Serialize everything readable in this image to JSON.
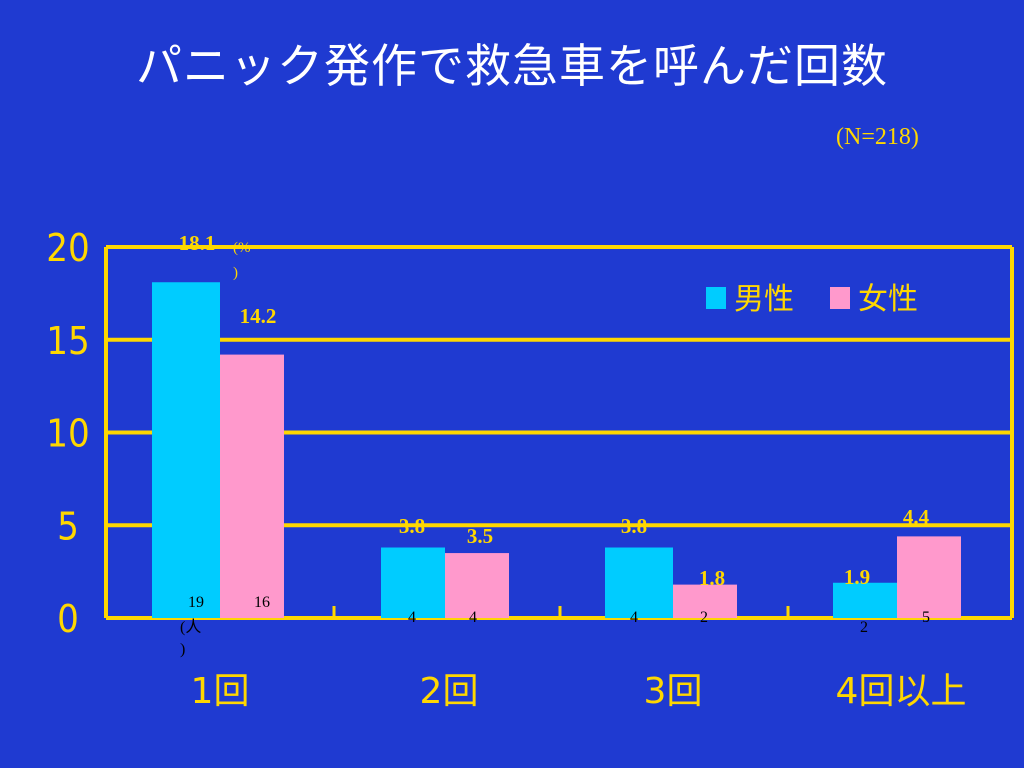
{
  "title": "パニック発作で救急車を呼んだ回数",
  "subtitle": "(N=218)",
  "colors": {
    "background": "#1f3ad1",
    "axis": "#ffd700",
    "title": "#ffffff",
    "male": "#00ccff",
    "female": "#ff99cc",
    "count_text": "#000000"
  },
  "chart_data": {
    "type": "bar",
    "categories": [
      "1回",
      "2回",
      "3回",
      "4回以上"
    ],
    "series": [
      {
        "name": "男性",
        "values": [
          18.1,
          3.8,
          3.8,
          1.9
        ],
        "labels": [
          "18.1",
          "3.8",
          "3.8",
          "1.9"
        ],
        "counts": [
          "19",
          "4",
          "4",
          "2"
        ]
      },
      {
        "name": "女性",
        "values": [
          14.2,
          3.5,
          1.8,
          4.4
        ],
        "labels": [
          "14.2",
          "3.5",
          "1.8",
          "4.4"
        ],
        "counts": [
          "16",
          "4",
          "2",
          "5"
        ]
      }
    ],
    "yticks": [
      "0",
      "5",
      "10",
      "15",
      "20"
    ],
    "ylim": [
      0,
      20
    ],
    "percent_unit": "(%)",
    "count_unit": "(人)",
    "grid": true,
    "legend_position": "top-right"
  }
}
